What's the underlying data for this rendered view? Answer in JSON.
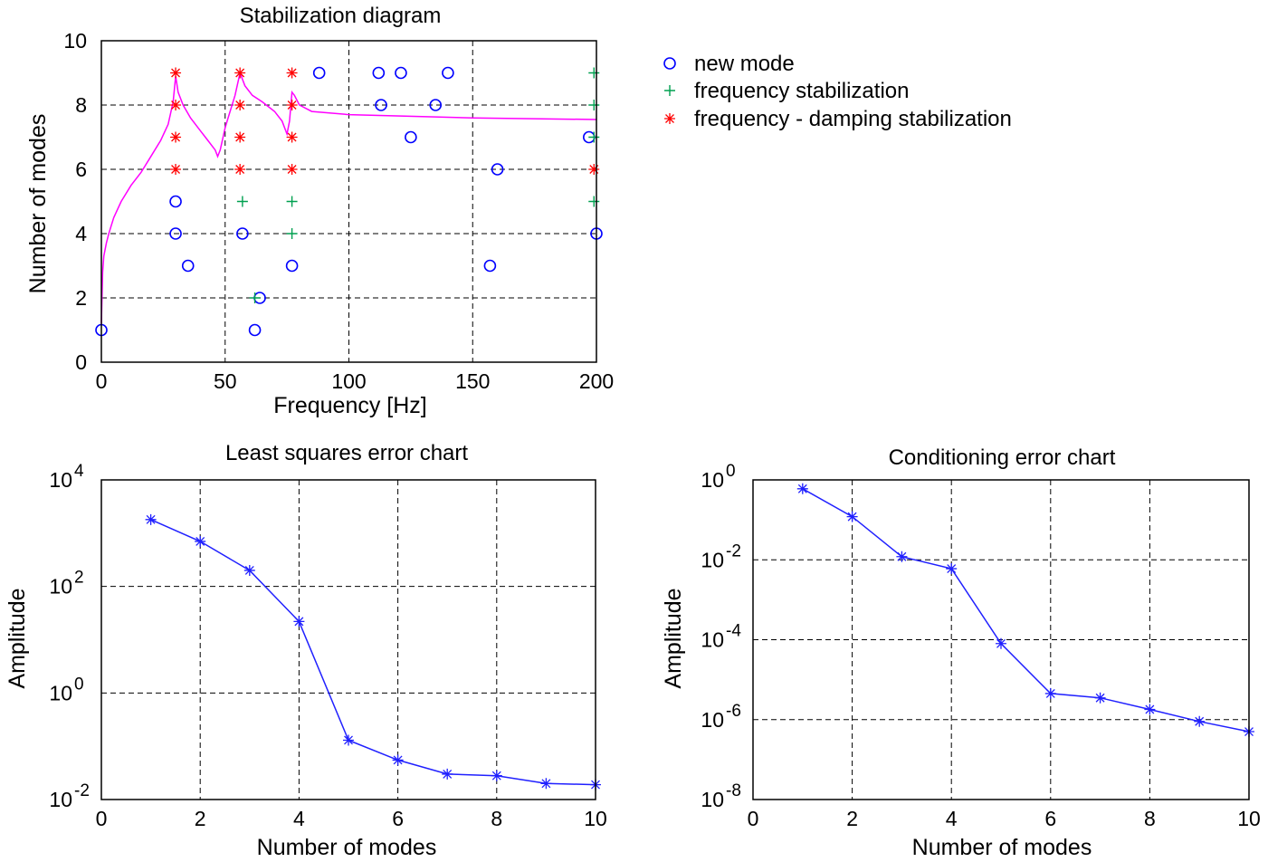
{
  "chart_data": [
    {
      "type": "scatter",
      "title": "Stabilization diagram",
      "xlabel": "Frequency  [Hz]",
      "ylabel": "Number of modes",
      "xlim": [
        0,
        200
      ],
      "ylim": [
        0,
        10
      ],
      "xticks": [
        0,
        50,
        100,
        150,
        200
      ],
      "yticks": [
        0,
        2,
        4,
        6,
        8,
        10
      ],
      "grid": true,
      "legend_position": "right-outside",
      "colors": {
        "new_mode": "#0000ff",
        "freq_stab": "#00a050",
        "freq_damp_stab": "#ff0000",
        "response": "#ff00ff"
      },
      "series": [
        {
          "name": "new mode",
          "marker": "circle",
          "points": [
            [
              0,
              1
            ],
            [
              62,
              1
            ],
            [
              64,
              2
            ],
            [
              35,
              3
            ],
            [
              77,
              3
            ],
            [
              157,
              3
            ],
            [
              30,
              4
            ],
            [
              57,
              4
            ],
            [
              200,
              4
            ],
            [
              30,
              5
            ],
            [
              88,
              9
            ],
            [
              112,
              9
            ],
            [
              121,
              9
            ],
            [
              140,
              9
            ],
            [
              113,
              8
            ],
            [
              135,
              8
            ],
            [
              125,
              7
            ],
            [
              197,
              7
            ],
            [
              160,
              6
            ]
          ]
        },
        {
          "name": "frequency stabilization",
          "marker": "plus",
          "points": [
            [
              62,
              2
            ],
            [
              57,
              5
            ],
            [
              77,
              5
            ],
            [
              77,
              4
            ],
            [
              199,
              5
            ],
            [
              199,
              7
            ],
            [
              199,
              8
            ],
            [
              199,
              9
            ]
          ]
        },
        {
          "name": "frequency - damping stabilization",
          "marker": "asterisk",
          "points": [
            [
              30,
              6
            ],
            [
              30,
              7
            ],
            [
              30,
              8
            ],
            [
              30,
              9
            ],
            [
              56,
              6
            ],
            [
              56,
              7
            ],
            [
              56,
              8
            ],
            [
              56,
              9
            ],
            [
              77,
              6
            ],
            [
              77,
              7
            ],
            [
              77,
              8
            ],
            [
              77,
              9
            ],
            [
              199,
              6
            ]
          ]
        }
      ],
      "response_curve": [
        [
          0,
          1.2
        ],
        [
          0.5,
          2.8
        ],
        [
          1,
          3.3
        ],
        [
          2,
          3.7
        ],
        [
          3,
          4.0
        ],
        [
          5,
          4.5
        ],
        [
          8,
          5.0
        ],
        [
          12,
          5.5
        ],
        [
          16,
          5.9
        ],
        [
          20,
          6.4
        ],
        [
          24,
          6.9
        ],
        [
          27,
          7.4
        ],
        [
          29,
          8.1
        ],
        [
          30,
          8.9
        ],
        [
          31,
          8.4
        ],
        [
          33,
          8.0
        ],
        [
          36,
          7.6
        ],
        [
          40,
          7.2
        ],
        [
          43,
          6.9
        ],
        [
          46,
          6.6
        ],
        [
          47,
          6.4
        ],
        [
          48,
          6.6
        ],
        [
          50,
          7.3
        ],
        [
          52,
          7.8
        ],
        [
          54,
          8.3
        ],
        [
          56,
          9.0
        ],
        [
          58,
          8.6
        ],
        [
          61,
          8.3
        ],
        [
          65,
          8.1
        ],
        [
          70,
          7.8
        ],
        [
          73,
          7.5
        ],
        [
          75,
          7.1
        ],
        [
          76,
          7.5
        ],
        [
          77,
          8.4
        ],
        [
          78,
          8.3
        ],
        [
          80,
          8.0
        ],
        [
          85,
          7.8
        ],
        [
          100,
          7.7
        ],
        [
          150,
          7.6
        ],
        [
          200,
          7.55
        ]
      ]
    },
    {
      "type": "line",
      "title": "Least squares error chart",
      "xlabel": "Number of modes",
      "ylabel": "Amplitude",
      "xlim": [
        0,
        10
      ],
      "ylim_exp": [
        -2,
        4
      ],
      "yscale": "log",
      "xticks": [
        0,
        2,
        4,
        6,
        8,
        10
      ],
      "ytick_base": "10",
      "ytick_exponents": [
        "-2",
        "0",
        "2",
        "4"
      ],
      "grid": true,
      "color": "#2020ff",
      "x": [
        1,
        2,
        3,
        4,
        5,
        6,
        7,
        8,
        9,
        10
      ],
      "y": [
        1800,
        700,
        200,
        22,
        0.13,
        0.055,
        0.03,
        0.028,
        0.02,
        0.019
      ]
    },
    {
      "type": "line",
      "title": "Conditioning error chart",
      "xlabel": "Number of modes",
      "ylabel": "Amplitude",
      "xlim": [
        0,
        10
      ],
      "ylim_exp": [
        -8,
        0
      ],
      "yscale": "log",
      "xticks": [
        0,
        2,
        4,
        6,
        8,
        10
      ],
      "ytick_base": "10",
      "ytick_exponents": [
        "-8",
        "-6",
        "-4",
        "-2",
        "0"
      ],
      "grid": true,
      "color": "#2020ff",
      "x": [
        1,
        2,
        3,
        4,
        5,
        6,
        7,
        8,
        9,
        10
      ],
      "y": [
        0.6,
        0.12,
        0.012,
        0.006,
        8e-05,
        4.5e-06,
        3.5e-06,
        1.8e-06,
        9e-07,
        5e-07
      ]
    }
  ]
}
